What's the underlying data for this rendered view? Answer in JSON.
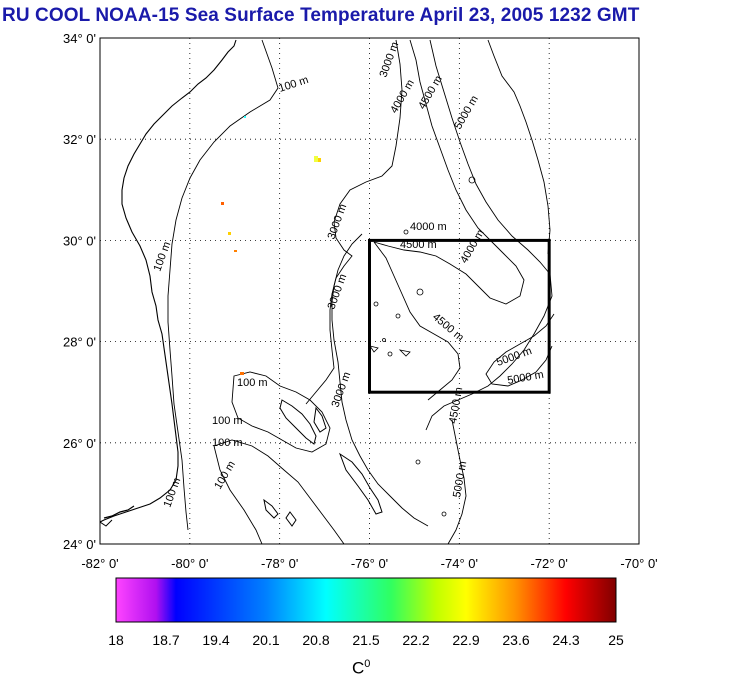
{
  "title": "RU COOL  NOAA-15 Sea Surface Temperature April 23, 2005 1232 GMT",
  "map": {
    "lat_labels": [
      "34° 0'",
      "32° 0'",
      "30° 0'",
      "28° 0'",
      "26° 0'",
      "24° 0'"
    ],
    "lon_labels": [
      "-82° 0'",
      "-80° 0'",
      "-78° 0'",
      "-76° 0'",
      "-74° 0'",
      "-72° 0'",
      "-70° 0'"
    ],
    "lat_range": [
      24,
      34
    ],
    "lon_range": [
      -82,
      -70
    ],
    "grid": "dotted",
    "bathymetry_labels": [
      "100 m",
      "100 m",
      "100 m",
      "100 m",
      "100 m",
      "100 m",
      "100 m",
      "3000 m",
      "3000 m",
      "3000 m",
      "3000 m",
      "4000 m",
      "4000 m",
      "4000 m",
      "4500 m",
      "4500 m",
      "4500 m",
      "4500 m",
      "5000 m",
      "5000 m",
      "5000 m",
      "5000 m"
    ],
    "study_box": {
      "lat": [
        27,
        30
      ],
      "lon": [
        -76,
        -72
      ]
    }
  },
  "colorbar": {
    "ticks": [
      "18",
      "18.7",
      "19.4",
      "20.1",
      "20.8",
      "21.5",
      "22.2",
      "22.9",
      "23.6",
      "24.3",
      "25"
    ],
    "range": [
      18,
      25
    ],
    "unit_base": "C",
    "unit_sup": "0",
    "colors": [
      "#ff00ff",
      "#0000ff",
      "#00ffff",
      "#00ff00",
      "#ffff00",
      "#ff8000",
      "#ff0000",
      "#800000"
    ]
  }
}
